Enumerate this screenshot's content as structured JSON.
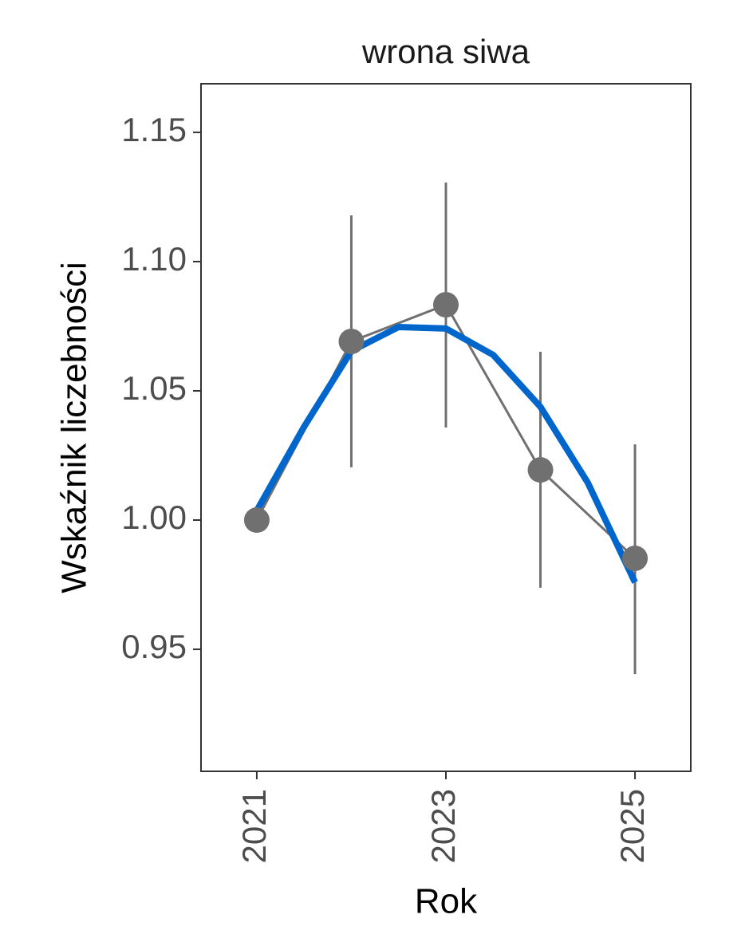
{
  "chart_data": {
    "type": "line",
    "title": "wrona siwa",
    "x_label": "Rok",
    "y_label": "Wskaźnik liczebności",
    "x": [
      2021,
      2022,
      2023,
      2024,
      2025
    ],
    "series": [
      {
        "color": "#707070",
        "values": [
          1.0,
          1.0691,
          1.0833,
          1.0194,
          0.9852
        ],
        "error_lower": [
          1.0,
          1.0204,
          1.0358,
          0.9738,
          0.9404
        ],
        "error_upper": [
          1.0,
          1.1179,
          1.1306,
          1.0651,
          1.0293
        ]
      }
    ],
    "trend": {
      "color": "#0066cc",
      "x": [
        2021,
        2021.5,
        2022,
        2022.5,
        2023,
        2023.5,
        2024,
        2024.5,
        2025
      ],
      "values": [
        1.0037,
        1.0361,
        1.0654,
        1.0747,
        1.0741,
        1.0639,
        1.0438,
        1.0145,
        0.9759
      ]
    },
    "xlim": [
      2020.41,
      2025.59
    ],
    "xticks": [
      2021,
      2023,
      2025
    ],
    "ylim": [
      0.9028,
      1.1688
    ],
    "yticks": [
      0.95,
      {
        "value": 1.0,
        "label": "1.00"
      },
      1.05,
      {
        "value": 1.1,
        "label": "1.10"
      },
      1.15
    ]
  }
}
